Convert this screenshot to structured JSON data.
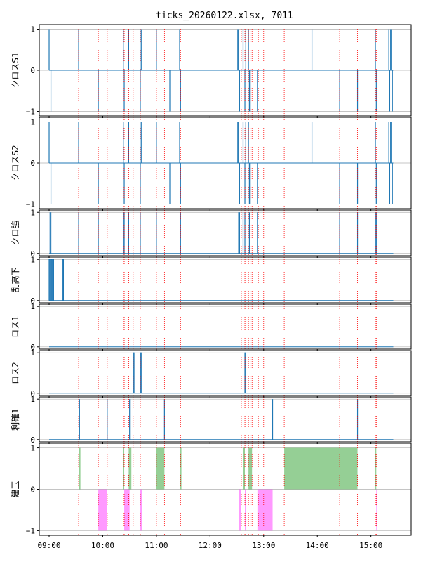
{
  "chart_data": {
    "title": "ticks_20260122.xlsx, 7011",
    "x_range": [
      "08:49",
      "15:45"
    ],
    "x_ticks": [
      "09:00",
      "10:00",
      "11:00",
      "12:00",
      "13:00",
      "14:00",
      "15:00"
    ],
    "grid": "horizontal",
    "colors": {
      "line": "#1f77b4",
      "vline": "#ff0000",
      "grid": "#b0b0b0",
      "long_fill": "#2ca02c",
      "short_fill": "#ff00ff"
    },
    "session_end": "15:25",
    "vlines": [
      "09:33",
      "09:55",
      "10:05",
      "10:23",
      "10:24",
      "10:29",
      "10:34",
      "10:42",
      "11:00",
      "11:09",
      "11:27",
      "12:35",
      "12:37",
      "12:39",
      "12:40",
      "12:43",
      "12:45",
      "12:47",
      "12:54",
      "13:00",
      "13:23",
      "14:25",
      "14:45",
      "15:05",
      "15:06"
    ],
    "panels": [
      {
        "ylabel": "クロスS1",
        "type": "spike",
        "ylim": [
          -1,
          1
        ],
        "yticks": [
          -1,
          0,
          1
        ],
        "events": [
          {
            "t": "09:00",
            "v": 1
          },
          {
            "t": "09:02",
            "v": -1
          },
          {
            "t": "09:33",
            "v": 1
          },
          {
            "t": "09:55",
            "v": -1
          },
          {
            "t": "10:23",
            "v": 1
          },
          {
            "t": "10:24",
            "v": -1
          },
          {
            "t": "10:29",
            "v": 1
          },
          {
            "t": "10:42",
            "v": -1
          },
          {
            "t": "10:43",
            "v": 1
          },
          {
            "t": "11:00",
            "v": 1
          },
          {
            "t": "11:15",
            "v": -1
          },
          {
            "t": "11:26",
            "v": 1
          },
          {
            "t": "11:27",
            "v": -1
          },
          {
            "t": "12:31",
            "v": 1
          },
          {
            "t": "12:32",
            "v": 1
          },
          {
            "t": "12:33",
            "v": -1
          },
          {
            "t": "12:37",
            "v": 1
          },
          {
            "t": "12:39",
            "v": -1
          },
          {
            "t": "12:40",
            "v": 1
          },
          {
            "t": "12:43",
            "v": 1
          },
          {
            "t": "12:44",
            "v": -1
          },
          {
            "t": "12:45",
            "v": -1
          },
          {
            "t": "12:53",
            "v": -1
          },
          {
            "t": "13:54",
            "v": 1
          },
          {
            "t": "14:25",
            "v": -1
          },
          {
            "t": "14:45",
            "v": -1
          },
          {
            "t": "15:05",
            "v": 1
          },
          {
            "t": "15:06",
            "v": -1
          },
          {
            "t": "15:20",
            "v": 1
          },
          {
            "t": "15:21",
            "v": -1
          },
          {
            "t": "15:22",
            "v": 1
          },
          {
            "t": "15:23",
            "v": 1
          },
          {
            "t": "15:24",
            "v": -1
          }
        ]
      },
      {
        "ylabel": "クロスS2",
        "type": "spike",
        "ylim": [
          -1,
          1
        ],
        "yticks": [
          -1,
          0,
          1
        ],
        "events": [
          {
            "t": "09:00",
            "v": 1
          },
          {
            "t": "09:02",
            "v": -1
          },
          {
            "t": "09:33",
            "v": 1
          },
          {
            "t": "09:55",
            "v": -1
          },
          {
            "t": "10:23",
            "v": 1
          },
          {
            "t": "10:24",
            "v": -1
          },
          {
            "t": "10:29",
            "v": 1
          },
          {
            "t": "10:42",
            "v": -1
          },
          {
            "t": "10:43",
            "v": 1
          },
          {
            "t": "11:00",
            "v": 1
          },
          {
            "t": "11:15",
            "v": -1
          },
          {
            "t": "11:26",
            "v": 1
          },
          {
            "t": "11:27",
            "v": -1
          },
          {
            "t": "12:31",
            "v": 1
          },
          {
            "t": "12:32",
            "v": 1
          },
          {
            "t": "12:33",
            "v": -1
          },
          {
            "t": "12:37",
            "v": 1
          },
          {
            "t": "12:39",
            "v": -1
          },
          {
            "t": "12:40",
            "v": 1
          },
          {
            "t": "12:43",
            "v": 1
          },
          {
            "t": "12:44",
            "v": -1
          },
          {
            "t": "12:45",
            "v": -1
          },
          {
            "t": "12:53",
            "v": -1
          },
          {
            "t": "13:54",
            "v": 1
          },
          {
            "t": "14:25",
            "v": -1
          },
          {
            "t": "14:45",
            "v": -1
          },
          {
            "t": "15:05",
            "v": 1
          },
          {
            "t": "15:06",
            "v": -1
          },
          {
            "t": "15:20",
            "v": 1
          },
          {
            "t": "15:21",
            "v": -1
          },
          {
            "t": "15:22",
            "v": 1
          },
          {
            "t": "15:23",
            "v": 1
          },
          {
            "t": "15:24",
            "v": -1
          }
        ]
      },
      {
        "ylabel": "クロ強",
        "type": "spike",
        "ylim": [
          0,
          1
        ],
        "yticks": [
          0,
          1
        ],
        "events": [
          {
            "t": "09:01",
            "v": 1
          },
          {
            "t": "09:02",
            "v": 1
          },
          {
            "t": "09:33",
            "v": 1
          },
          {
            "t": "09:55",
            "v": 1
          },
          {
            "t": "10:23",
            "v": 1
          },
          {
            "t": "10:24",
            "v": 1
          },
          {
            "t": "10:29",
            "v": 1
          },
          {
            "t": "10:42",
            "v": 1
          },
          {
            "t": "11:00",
            "v": 1
          },
          {
            "t": "11:27",
            "v": 1
          },
          {
            "t": "12:32",
            "v": 1
          },
          {
            "t": "12:33",
            "v": 1
          },
          {
            "t": "12:37",
            "v": 1
          },
          {
            "t": "12:39",
            "v": 1
          },
          {
            "t": "12:44",
            "v": 1
          },
          {
            "t": "12:53",
            "v": 1
          },
          {
            "t": "14:25",
            "v": 1
          },
          {
            "t": "14:45",
            "v": 1
          },
          {
            "t": "15:05",
            "v": 1
          },
          {
            "t": "15:06",
            "v": 1
          }
        ]
      },
      {
        "ylabel": "乱高下",
        "type": "step",
        "ylim": [
          0,
          1
        ],
        "yticks": [
          0,
          1
        ],
        "ranges": [
          [
            "09:00",
            "09:01"
          ],
          [
            "09:02",
            "09:03"
          ],
          [
            "09:04",
            "09:05"
          ],
          [
            "09:15",
            "09:16"
          ]
        ]
      },
      {
        "ylabel": "ロス1",
        "type": "step",
        "ylim": [
          0,
          1
        ],
        "yticks": [
          0,
          1
        ],
        "ranges": []
      },
      {
        "ylabel": "ロス2",
        "type": "step",
        "ylim": [
          0,
          1
        ],
        "yticks": [
          0,
          1
        ],
        "ranges": [
          [
            "10:34",
            "10:35"
          ],
          [
            "10:42",
            "10:43"
          ],
          [
            "12:39",
            "12:40"
          ]
        ]
      },
      {
        "ylabel": "利確1",
        "type": "spike",
        "ylim": [
          0,
          1
        ],
        "yticks": [
          0,
          1
        ],
        "events": [
          {
            "t": "09:34",
            "v": 1
          },
          {
            "t": "10:05",
            "v": 1
          },
          {
            "t": "10:30",
            "v": 1
          },
          {
            "t": "11:09",
            "v": 1
          },
          {
            "t": "13:10",
            "v": 1
          },
          {
            "t": "14:45",
            "v": 1
          }
        ]
      },
      {
        "ylabel": "建玉",
        "type": "fill",
        "ylim": [
          -1,
          1
        ],
        "yticks": [
          -1,
          0,
          1
        ],
        "long": [
          [
            "09:33",
            "09:35"
          ],
          [
            "10:23",
            "10:24"
          ],
          [
            "10:29",
            "10:32"
          ],
          [
            "11:00",
            "11:09"
          ],
          [
            "11:26",
            "11:28"
          ],
          [
            "12:37",
            "12:39"
          ],
          [
            "12:43",
            "12:47"
          ],
          [
            "13:23",
            "14:45"
          ],
          [
            "15:05",
            "15:06"
          ]
        ],
        "short": [
          [
            "09:55",
            "10:05"
          ],
          [
            "10:24",
            "10:30"
          ],
          [
            "10:42",
            "10:44"
          ],
          [
            "12:32",
            "12:35"
          ],
          [
            "12:39",
            "12:40"
          ],
          [
            "12:53",
            "13:10"
          ],
          [
            "15:06",
            "15:07"
          ]
        ]
      }
    ]
  }
}
